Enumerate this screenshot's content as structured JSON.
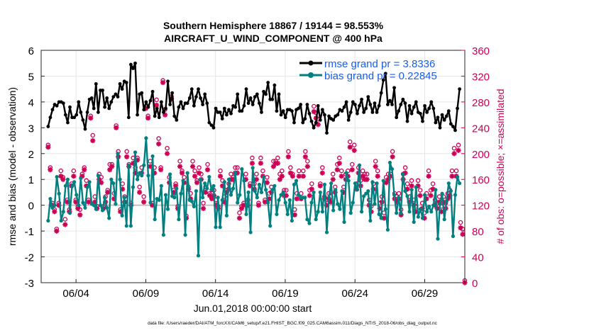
{
  "chart_data": {
    "type": "line",
    "title": "Southern Hemisphere 18867 / 19144 = 98.553%",
    "subtitle": "AIRCRAFT_U_WIND_COMPONENT @ 400 hPa",
    "xlabel": "Jun.01,2018 00:00:00 start",
    "ylabel_left": "rmse and bias (model - observation)",
    "ylabel_right": "# of obs: o=possible; ×=assimilated",
    "footer": "data file: /Users/raeder/DAI/ATM_forcXX/CAM6_setup/f.e21.FHIST_BGC.f09_025.CAM6assim.011/Diags_NTrS_2018-06/obs_diag_output.nc",
    "x_unit": "days since Jun 01 2018",
    "xlim": [
      0.5,
      30.875
    ],
    "ylim_left": [
      -3,
      6
    ],
    "ylim_right": [
      0,
      360
    ],
    "left_ticks": [
      "-3",
      "-2",
      "-1",
      "0",
      "1",
      "2",
      "3",
      "4",
      "5",
      "6"
    ],
    "right_ticks": [
      "0",
      "40",
      "80",
      "120",
      "160",
      "200",
      "240",
      "280",
      "320",
      "360"
    ],
    "x_ticks": [
      {
        "label": "06/04",
        "x": 3
      },
      {
        "label": "06/09",
        "x": 8
      },
      {
        "label": "06/14",
        "x": 13
      },
      {
        "label": "06/19",
        "x": 18
      },
      {
        "label": "06/24",
        "x": 23
      },
      {
        "label": "06/29",
        "x": 28
      }
    ],
    "legend_location": "top-right",
    "grid": true,
    "series": [
      {
        "name": "rmse grand pr = 3.8336",
        "axis": "left",
        "color": "#000000",
        "marker": "star",
        "values": [
          3.05,
          3.4,
          3.7,
          3.9,
          3.85,
          4.0,
          4.0,
          3.95,
          3.5,
          3.2,
          3.8,
          3.4,
          3.4,
          3.5,
          4.0,
          3.6,
          3.3,
          2.95,
          3.6,
          4.1,
          4.15,
          3.75,
          4.7,
          3.6,
          4.45,
          4.45,
          3.8,
          4.15,
          3.75,
          4.0,
          4.2,
          4.3,
          4.2,
          4.7,
          4.5,
          4.8,
          4.75,
          3.4,
          5.45,
          5.3,
          5.5,
          3.5,
          4.3,
          4.35,
          3.7,
          4.0,
          3.8,
          4.05,
          4.4,
          3.45,
          3.75,
          3.4,
          4.0,
          3.6,
          3.75,
          4.8,
          3.9,
          4.35,
          3.45,
          3.3,
          3.8,
          4.0,
          3.75,
          3.95,
          3.95,
          4.15,
          4.5,
          3.85,
          4.2,
          4.5,
          4.15,
          3.9,
          4.3,
          3.95,
          3.2,
          3.1,
          3.0,
          3.75,
          3.6,
          3.6,
          3.35,
          3.75,
          3.5,
          3.7,
          3.55,
          3.85,
          3.8,
          4.3,
          3.65,
          3.65,
          3.85,
          4.5,
          3.95,
          4.15,
          3.9,
          4.2,
          4.3,
          3.95,
          3.6,
          4.4,
          4.3,
          4.75,
          4.1,
          4.1,
          4.65,
          3.65,
          4.3,
          3.5,
          3.65,
          3.4,
          3.7,
          3.7,
          3.65,
          3.2,
          3.7,
          3.75,
          3.9,
          3.2,
          3.35,
          3.9,
          3.55,
          3.25,
          3.0,
          3.2,
          3.85,
          3.3,
          3.7,
          3.5,
          2.8,
          3.45,
          3.35,
          3.3,
          3.45,
          3.5,
          3.7,
          3.65,
          3.8,
          4.0,
          3.3,
          3.6,
          4.0,
          3.9,
          3.55,
          3.85,
          4.1,
          3.6,
          3.75,
          4.2,
          3.9,
          3.6,
          3.95,
          3.6,
          3.85,
          4.35,
          4.85,
          5.1,
          3.9,
          4.05,
          3.9,
          4.55,
          3.4,
          3.65,
          3.9,
          4.1,
          3.95,
          3.25,
          3.85,
          3.55,
          3.8,
          4.0,
          3.6,
          3.55,
          3.25,
          3.85,
          3.6,
          3.75,
          4.0,
          3.75,
          3.2,
          3.4,
          3.0,
          3.5,
          3.3,
          3.45,
          3.65,
          3.15,
          3.05,
          2.9,
          3.75,
          4.5
        ]
      },
      {
        "name": "bias grand pr = 0.22845",
        "axis": "left",
        "color": "#008080",
        "marker": "dot",
        "values": [
          -0.6,
          0.25,
          -0.1,
          0.0,
          1.1,
          0.45,
          -0.6,
          -0.25,
          0.75,
          1.0,
          -0.3,
          0.75,
          0.9,
          0.4,
          0.0,
          1.05,
          0.1,
          -0.1,
          0.7,
          0.9,
          0.05,
          0.0,
          -0.15,
          1.15,
          0.0,
          -0.2,
          0.3,
          -0.1,
          -0.5,
          1.0,
          0.85,
          0.05,
          2.0,
          1.0,
          -0.4,
          0.3,
          -0.8,
          1.55,
          -0.8,
          0.7,
          2.05,
          1.0,
          1.25,
          1.15,
          1.55,
          2.6,
          1.15,
          0.1,
          1.9,
          -0.55,
          0.25,
          0.2,
          0.75,
          -1.15,
          0.4,
          -0.15,
          1.2,
          0.35,
          0.3,
          0.65,
          -0.55,
          0.45,
          0.95,
          -1.15,
          1.25,
          0.2,
          0.15,
          -0.05,
          0.55,
          -1.95,
          1.0,
          0.3,
          0.85,
          0.65,
          1.1,
          0.6,
          0.75,
          -0.85,
          0.3,
          -0.85,
          0.2,
          0.9,
          -0.4,
          1.0,
          0.4,
          0.65,
          1.25,
          0.1,
          0.4,
          1.4,
          0.95,
          -0.35,
          0.5,
          -1.05,
          1.45,
          0.55,
          0.3,
          0.8,
          0.5,
          1.1,
          0.6,
          0.1,
          -0.8,
          0.6,
          0.75,
          -0.35,
          0.2,
          0.4,
          0.5,
          0.1,
          -0.35,
          0.2,
          -0.6,
          0.8,
          0.95,
          0.4,
          0.3,
          0.3,
          0.3,
          -0.55,
          -0.7,
          0.1,
          0.5,
          -0.55,
          -0.25,
          0.5,
          -0.25,
          0.8,
          -1.05,
          0.3,
          0.85,
          -0.2,
          0.6,
          0.05,
          -0.15,
          0.55,
          -0.65,
          1.25,
          0.95,
          -0.3,
          0.1,
          0.85,
          0.6,
          1.55,
          -0.25,
          0.35,
          0.45,
          0.55,
          -0.6,
          0.9,
          0.05,
          0.85,
          -0.35,
          -0.5,
          0.95,
          -0.15,
          -0.95,
          1.65,
          1.4,
          0.4,
          -0.3,
          0.3,
          -0.3,
          1.2,
          0.55,
          0.35,
          -0.25,
          0.6,
          -0.65,
          0.7,
          -0.45,
          -0.15,
          -0.5,
          0.4,
          -0.25,
          -0.05,
          -0.25,
          0.0,
          0.6,
          -1.3,
          0.05,
          0.45,
          -0.55,
          0.15,
          0.85,
          0.55,
          -1.2,
          0.4,
          1.1,
          0.85
        ]
      },
      {
        "name": "# obs possible",
        "axis": "right",
        "color": "#cc0055",
        "marker": "circle-open",
        "values": [
          210,
          175,
          120,
          110,
          80,
          120,
          170,
          160,
          95,
          125,
          110,
          150,
          170,
          125,
          115,
          110,
          165,
          175,
          155,
          125,
          255,
          225,
          130,
          115,
          165,
          160,
          115,
          130,
          140,
          180,
          180,
          135,
          240,
          200,
          110,
          150,
          130,
          200,
          180,
          120,
          190,
          175,
          190,
          145,
          175,
          130,
          270,
          255,
          185,
          120,
          175,
          280,
          220,
          175,
          310,
          265,
          205,
          160,
          285,
          140,
          150,
          115,
          185,
          170,
          160,
          100,
          145,
          135,
          185,
          170,
          155,
          175,
          165,
          120,
          145,
          180,
          135,
          135,
          140,
          125,
          115,
          170,
          155,
          130,
          140,
          150,
          165,
          160,
          175,
          175,
          105,
          115,
          120,
          165,
          125,
          150,
          190,
          150,
          165,
          120,
          190,
          170,
          125,
          160,
          135,
          145,
          185,
          185,
          190,
          165,
          170,
          140,
          140,
          200,
          175,
          165,
          110,
          135,
          170,
          135,
          170,
          200,
          185,
          140,
          150,
          270,
          260,
          250,
          150,
          175,
          130,
          125,
          135,
          130,
          165,
          145,
          180,
          190,
          170,
          145,
          165,
          170,
          215,
          180,
          210,
          150,
          175,
          155,
          170,
          165,
          165,
          125,
          115,
          150,
          185,
          170,
          120,
          130,
          105,
          160,
          165,
          165,
          200,
          135,
          130,
          135,
          110,
          165,
          175,
          150,
          130,
          155,
          125,
          115,
          155,
          140,
          120,
          105,
          135,
          170,
          140,
          150,
          125,
          120,
          130,
          115,
          130,
          120,
          135,
          140,
          170,
          205,
          170,
          210,
          90,
          80,
          0
        ]
      },
      {
        "name": "# obs assimilated",
        "axis": "right",
        "color": "#cc0055",
        "marker": "star",
        "values": [
          210,
          175,
          120,
          110,
          80,
          120,
          165,
          160,
          90,
          125,
          110,
          150,
          165,
          125,
          115,
          105,
          165,
          175,
          150,
          125,
          255,
          220,
          125,
          115,
          160,
          155,
          115,
          125,
          140,
          175,
          180,
          130,
          240,
          195,
          110,
          145,
          125,
          195,
          180,
          120,
          185,
          170,
          190,
          140,
          170,
          125,
          270,
          255,
          180,
          120,
          170,
          275,
          215,
          175,
          310,
          260,
          200,
          155,
          285,
          140,
          150,
          115,
          180,
          170,
          155,
          100,
          145,
          130,
          180,
          165,
          155,
          170,
          160,
          115,
          140,
          175,
          135,
          130,
          135,
          120,
          115,
          165,
          150,
          125,
          140,
          145,
          160,
          160,
          170,
          170,
          100,
          115,
          120,
          160,
          120,
          150,
          185,
          145,
          160,
          120,
          185,
          165,
          125,
          155,
          130,
          140,
          180,
          185,
          185,
          160,
          165,
          135,
          135,
          195,
          170,
          165,
          105,
          130,
          165,
          130,
          165,
          195,
          180,
          135,
          145,
          265,
          255,
          245,
          150,
          170,
          130,
          120,
          130,
          125,
          160,
          140,
          175,
          185,
          165,
          140,
          160,
          165,
          210,
          175,
          205,
          145,
          170,
          150,
          165,
          160,
          160,
          120,
          110,
          145,
          180,
          165,
          115,
          125,
          100,
          155,
          160,
          165,
          195,
          130,
          125,
          130,
          105,
          160,
          170,
          145,
          125,
          150,
          120,
          110,
          150,
          135,
          115,
          100,
          130,
          165,
          135,
          145,
          120,
          115,
          125,
          110,
          125,
          115,
          130,
          135,
          165,
          200,
          165,
          205,
          85,
          75,
          0
        ]
      }
    ]
  }
}
